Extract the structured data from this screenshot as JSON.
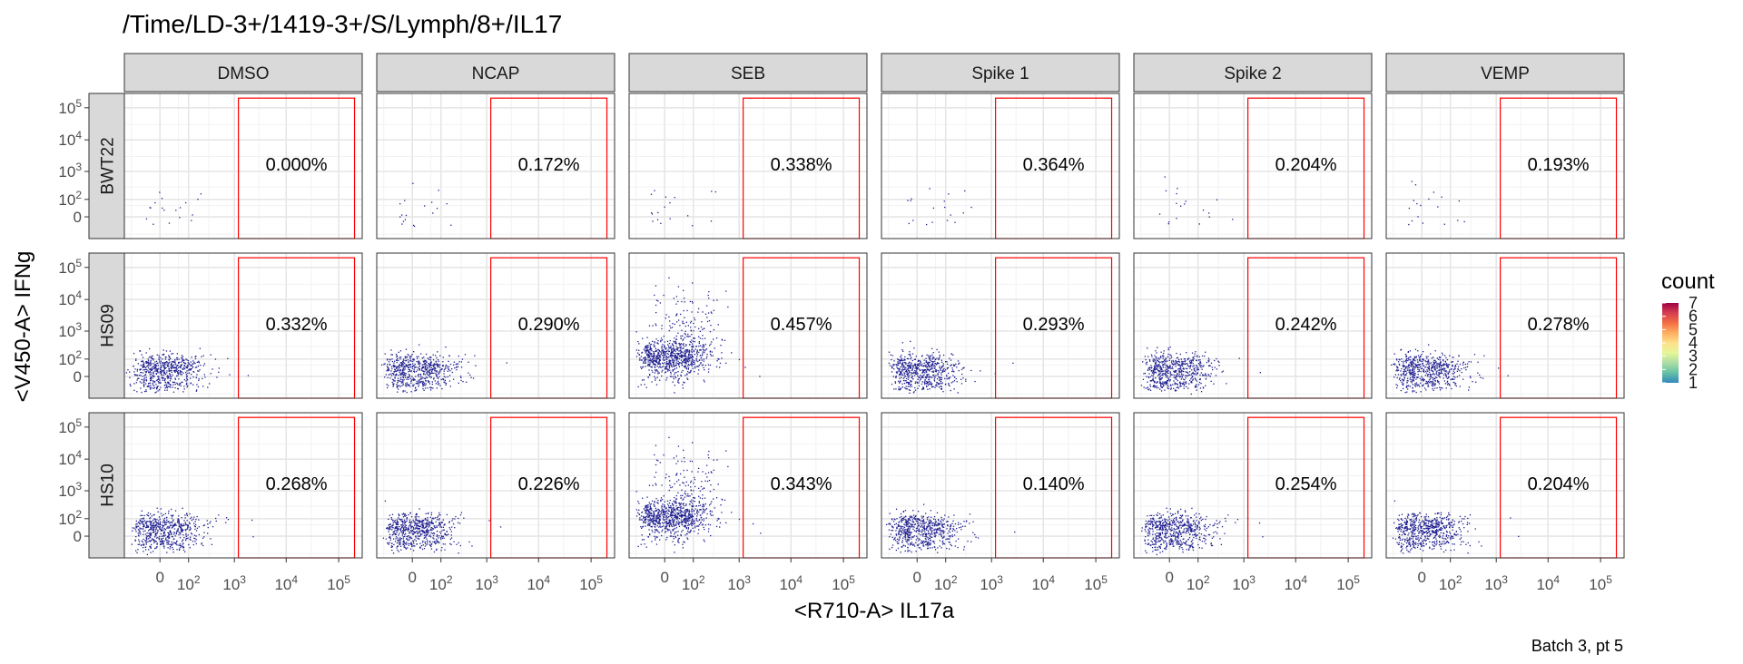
{
  "chart_data": {
    "type": "scatter",
    "title": "/Time/LD-3+/1419-3+/S/Lymph/8+/IL17",
    "xlabel": "<R710-A> IL17a",
    "ylabel": "<V450-A> IFNg",
    "caption": "Batch 3, pt 5",
    "x_scale": "biexponential",
    "y_scale": "biexponential",
    "x_tick_labels": [
      "0",
      "10^2",
      "10^3",
      "10^4",
      "10^5"
    ],
    "y_tick_labels": [
      "0",
      "10^2",
      "10^3",
      "10^4",
      "10^5"
    ],
    "columns": [
      "DMSO",
      "NCAP",
      "SEB",
      "Spike 1",
      "Spike 2",
      "VEMP"
    ],
    "rows": [
      "BWT22",
      "HS09",
      "HS10"
    ],
    "gate": {
      "x_range": [
        1200,
        200000
      ],
      "y_range": [
        0,
        200000
      ],
      "color": "#ff0000"
    },
    "gate_percentages": [
      [
        "0.000%",
        "0.172%",
        "0.338%",
        "0.364%",
        "0.204%",
        "0.193%"
      ],
      [
        "0.332%",
        "0.290%",
        "0.457%",
        "0.293%",
        "0.242%",
        "0.278%"
      ],
      [
        "0.268%",
        "0.226%",
        "0.343%",
        "0.140%",
        "0.254%",
        "0.204%"
      ]
    ],
    "grid": true,
    "legend": {
      "title": "count",
      "position": "right",
      "labels": [
        "1",
        "2",
        "3",
        "4",
        "5",
        "6",
        "7"
      ],
      "colors": [
        "#3288bd",
        "#66c2a5",
        "#abdda4",
        "#e6f598",
        "#fee08b",
        "#fdae61",
        "#f46d43",
        "#d53e4f",
        "#9e0142"
      ]
    },
    "point_color": "#1f1f8f"
  }
}
